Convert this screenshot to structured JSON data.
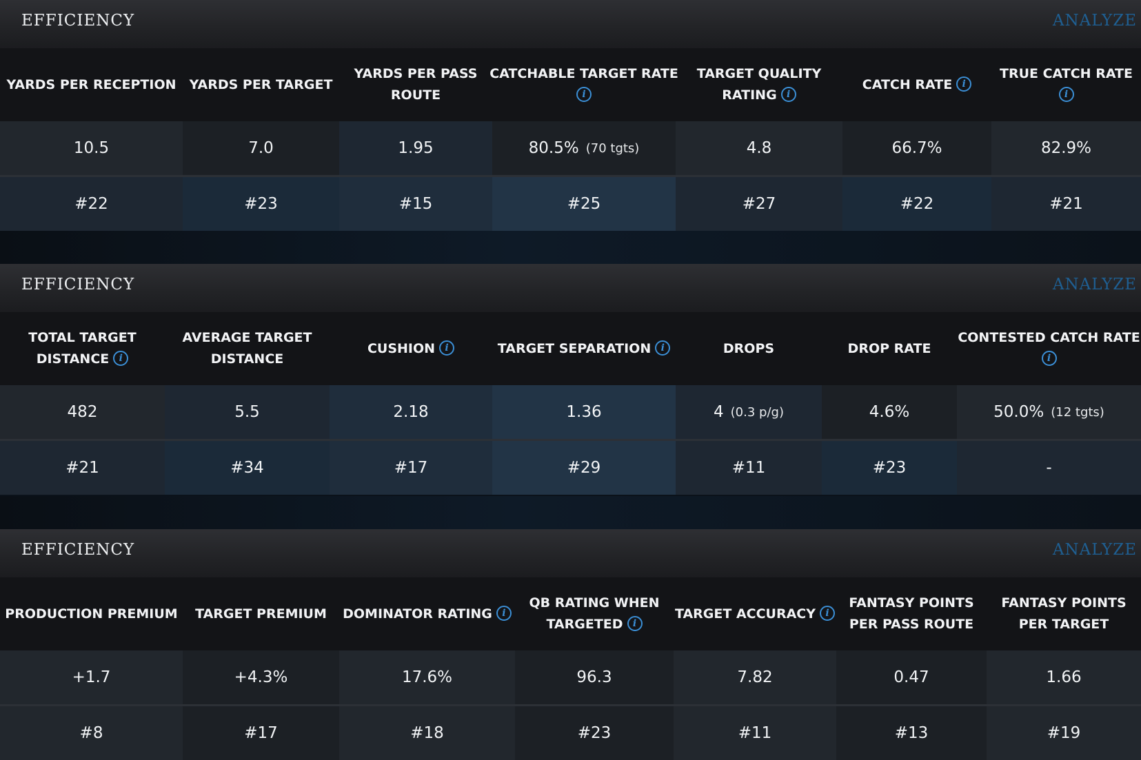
{
  "panels": [
    {
      "title": "EFFICIENCY",
      "analyze_label": "ANALYZE",
      "columns": [
        {
          "lines": [
            "YARDS PER RECEPTION"
          ],
          "info": false,
          "value": "10.5",
          "note": "",
          "rank": "#22"
        },
        {
          "lines": [
            "YARDS PER TARGET"
          ],
          "info": false,
          "value": "7.0",
          "note": "",
          "rank": "#23"
        },
        {
          "lines": [
            "YARDS PER PASS",
            "ROUTE"
          ],
          "info": false,
          "value": "1.95",
          "note": "",
          "rank": "#15"
        },
        {
          "lines": [
            "CATCHABLE TARGET RATE"
          ],
          "info": true,
          "info_inline": false,
          "value": "80.5%",
          "note": "(70 tgts)",
          "rank": "#25"
        },
        {
          "lines": [
            "TARGET QUALITY",
            "RATING"
          ],
          "info": true,
          "info_inline": true,
          "value": "4.8",
          "note": "",
          "rank": "#27"
        },
        {
          "lines": [
            "CATCH RATE"
          ],
          "info": true,
          "info_inline": true,
          "value": "66.7%",
          "note": "",
          "rank": "#22"
        },
        {
          "lines": [
            "TRUE CATCH RATE"
          ],
          "info": true,
          "info_inline": false,
          "value": "82.9%",
          "note": "",
          "rank": "#21"
        }
      ]
    },
    {
      "title": "EFFICIENCY",
      "analyze_label": "ANALYZE",
      "columns": [
        {
          "lines": [
            "TOTAL TARGET",
            "DISTANCE"
          ],
          "info": true,
          "info_inline": true,
          "value": "482",
          "note": "",
          "rank": "#21"
        },
        {
          "lines": [
            "AVERAGE TARGET",
            "DISTANCE"
          ],
          "info": false,
          "value": "5.5",
          "note": "",
          "rank": "#34"
        },
        {
          "lines": [
            "CUSHION"
          ],
          "info": true,
          "info_inline": true,
          "value": "2.18",
          "note": "",
          "rank": "#17"
        },
        {
          "lines": [
            "TARGET SEPARATION"
          ],
          "info": true,
          "info_inline": true,
          "value": "1.36",
          "note": "",
          "rank": "#29"
        },
        {
          "lines": [
            "DROPS"
          ],
          "info": false,
          "value": "4",
          "note": "(0.3 p/g)",
          "rank": "#11"
        },
        {
          "lines": [
            "DROP RATE"
          ],
          "info": false,
          "value": "4.6%",
          "note": "",
          "rank": "#23"
        },
        {
          "lines": [
            "CONTESTED CATCH RATE"
          ],
          "info": true,
          "info_inline": false,
          "value": "50.0%",
          "note": "(12 tgts)",
          "rank": "-"
        }
      ]
    },
    {
      "title": "EFFICIENCY",
      "analyze_label": "ANALYZE",
      "columns": [
        {
          "lines": [
            "PRODUCTION PREMIUM"
          ],
          "info": false,
          "value": "+1.7",
          "note": "",
          "rank": "#8"
        },
        {
          "lines": [
            "TARGET PREMIUM"
          ],
          "info": false,
          "value": "+4.3%",
          "note": "",
          "rank": "#17"
        },
        {
          "lines": [
            "DOMINATOR RATING"
          ],
          "info": true,
          "info_inline": true,
          "value": "17.6%",
          "note": "",
          "rank": "#18"
        },
        {
          "lines": [
            "QB RATING WHEN",
            "TARGETED"
          ],
          "info": true,
          "info_inline": true,
          "value": "96.3",
          "note": "",
          "rank": "#23"
        },
        {
          "lines": [
            "TARGET ACCURACY"
          ],
          "info": true,
          "info_inline": true,
          "value": "7.82",
          "note": "",
          "rank": "#11"
        },
        {
          "lines": [
            "FANTASY POINTS",
            "PER PASS ROUTE"
          ],
          "info": false,
          "value": "0.47",
          "note": "",
          "rank": "#13"
        },
        {
          "lines": [
            "FANTASY POINTS",
            "PER TARGET"
          ],
          "info": false,
          "value": "1.66",
          "note": "",
          "rank": "#19"
        }
      ]
    }
  ],
  "colors": {
    "analyze": "#1f5f92",
    "info_icon": "#3b8fd6"
  },
  "icons": {
    "info": "info-icon",
    "info_glyph": "i"
  }
}
